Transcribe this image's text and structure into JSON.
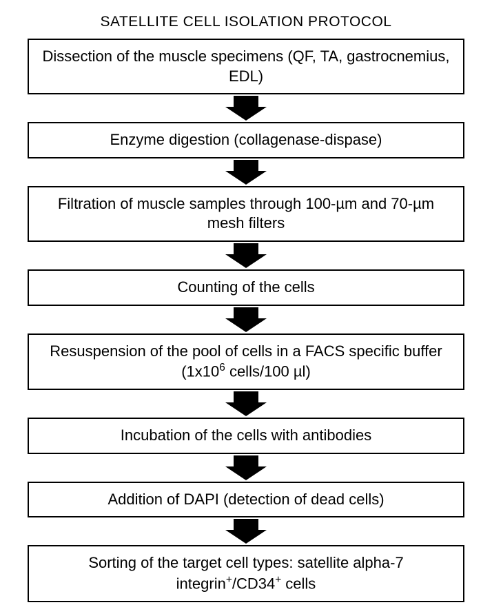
{
  "title": "SATELLITE CELL ISOLATION PROTOCOL",
  "flowchart": {
    "type": "flowchart",
    "direction": "top-to-bottom",
    "background_color": "#ffffff",
    "box_border_color": "#000000",
    "box_border_width": 2,
    "box_background": "#ffffff",
    "arrow_color": "#000000",
    "font_family": "Arial",
    "title_fontsize": 21,
    "box_fontsize": 22,
    "steps": [
      {
        "text": "Dissection of the muscle specimens (QF, TA, gastrocnemius, EDL)"
      },
      {
        "text": "Enzyme digestion (collagenase-dispase)"
      },
      {
        "text": "Filtration of muscle samples through 100-µm and 70-µm mesh filters"
      },
      {
        "text": "Counting of the cells"
      },
      {
        "text_html": "Resuspension of the pool of cells in a FACS specific buffer (1x10<sup>6</sup> cells/100 µl)"
      },
      {
        "text": "Incubation of the cells with antibodies"
      },
      {
        "text": "Addition of DAPI (detection of dead cells)"
      },
      {
        "text_html": "Sorting of the target cell types: satellite alpha-7 integrin<sup>+</sup>/CD34<sup>+</sup> cells"
      }
    ],
    "arrow": {
      "width": 60,
      "height": 36,
      "shaft_width": 36,
      "head_width": 60,
      "color": "#000000"
    }
  }
}
